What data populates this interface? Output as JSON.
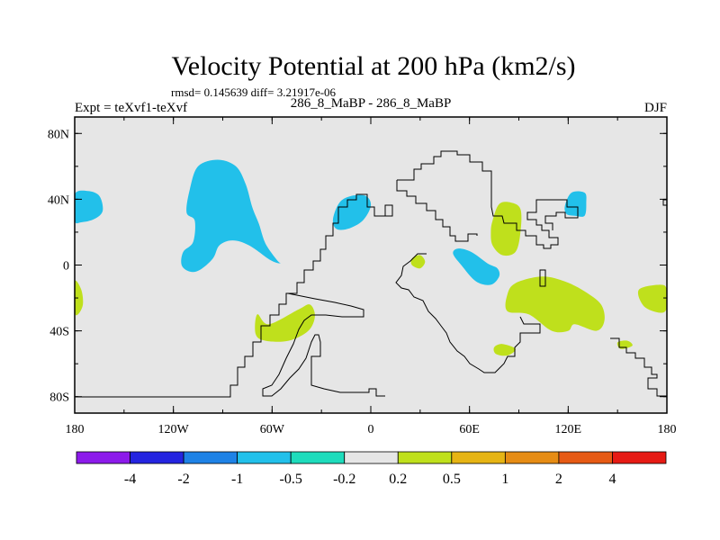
{
  "chart_data": {
    "type": "filled-contour-map",
    "title": "Velocity Potential at 200 hPa (km2/s)",
    "stats": "rmsd= 0.145639 diff= 3.21917e-06",
    "subtitle_left": "Expt = teXvf1-teXvf",
    "subtitle_center": "286_8_MaBP - 286_8_MaBP",
    "subtitle_right": "DJF",
    "x_ticks": [
      {
        "value": -180,
        "label": "180"
      },
      {
        "value": -120,
        "label": "120W"
      },
      {
        "value": -60,
        "label": "60W"
      },
      {
        "value": 0,
        "label": "0"
      },
      {
        "value": 60,
        "label": "60E"
      },
      {
        "value": 120,
        "label": "120E"
      },
      {
        "value": 180,
        "label": "180"
      }
    ],
    "y_ticks": [
      {
        "value": 80,
        "label": "80N"
      },
      {
        "value": 40,
        "label": "40N"
      },
      {
        "value": 0,
        "label": "0"
      },
      {
        "value": -40,
        "label": "40S"
      },
      {
        "value": -80,
        "label": "80S"
      }
    ],
    "xlim": [
      -180,
      180
    ],
    "ylim": [
      -90,
      90
    ],
    "colorbar": {
      "colors": [
        "#8c1aea",
        "#2424e0",
        "#1e82e6",
        "#22c0ea",
        "#1edcbc",
        "#e6e6e6",
        "#bfe01c",
        "#e6b414",
        "#e68c14",
        "#e65a14",
        "#e61a14"
      ],
      "labels": [
        "-4",
        "-2",
        "-1",
        "-0.5",
        "-0.2",
        "0.2",
        "0.5",
        "1",
        "2",
        "4"
      ]
    },
    "background_color": "#e6e6e6",
    "regions": [
      {
        "name": "north-pacific-neg-west",
        "level": "-0.5",
        "polygon": [
          [
            -180,
            43
          ],
          [
            -172,
            45
          ],
          [
            -165,
            42
          ],
          [
            -163,
            33
          ],
          [
            -168,
            28
          ],
          [
            -176,
            26
          ],
          [
            -180,
            27
          ]
        ]
      },
      {
        "name": "north-pacific-neg-center",
        "level": "-0.5",
        "polygon": [
          [
            -105,
            60
          ],
          [
            -93,
            64
          ],
          [
            -82,
            60
          ],
          [
            -76,
            49
          ],
          [
            -72,
            35
          ],
          [
            -68,
            25
          ],
          [
            -64,
            13
          ],
          [
            -57,
            3
          ],
          [
            -55,
            1
          ],
          [
            -61,
            3
          ],
          [
            -74,
            12
          ],
          [
            -84,
            15
          ],
          [
            -92,
            12
          ],
          [
            -96,
            4
          ],
          [
            -104,
            -3
          ],
          [
            -110,
            -4
          ],
          [
            -115,
            0
          ],
          [
            -114,
            8
          ],
          [
            -108,
            14
          ],
          [
            -107,
            27
          ],
          [
            -112,
            32
          ],
          [
            -110,
            46
          ]
        ]
      },
      {
        "name": "atlantic-neg",
        "level": "-0.5",
        "polygon": [
          [
            -23,
            28
          ],
          [
            -19,
            38
          ],
          [
            -12,
            42
          ],
          [
            -3,
            42
          ],
          [
            0,
            36
          ],
          [
            -5,
            27
          ],
          [
            -14,
            22
          ],
          [
            -21,
            22
          ]
        ]
      },
      {
        "name": "africa-neg",
        "level": "-0.5",
        "polygon": [
          [
            50,
            7
          ],
          [
            53,
            10
          ],
          [
            61,
            8
          ],
          [
            71,
            1
          ],
          [
            77,
            -2
          ],
          [
            78,
            -7
          ],
          [
            73,
            -12
          ],
          [
            64,
            -10
          ],
          [
            55,
            0
          ]
        ]
      },
      {
        "name": "east-asia-neg",
        "level": "-0.5",
        "polygon": [
          [
            118,
            36
          ],
          [
            122,
            44
          ],
          [
            130,
            44
          ],
          [
            131,
            38
          ],
          [
            130,
            30
          ],
          [
            124,
            30
          ],
          [
            119,
            31
          ]
        ]
      },
      {
        "name": "west-pacific-pos-edge",
        "level": "0.2",
        "polygon": [
          [
            -180,
            -10
          ],
          [
            -176,
            -15
          ],
          [
            -175,
            -24
          ],
          [
            -178,
            -30
          ],
          [
            -180,
            -28
          ]
        ]
      },
      {
        "name": "south-atlantic-pos",
        "level": "0.2",
        "polygon": [
          [
            -69,
            -30
          ],
          [
            -62,
            -36
          ],
          [
            -44,
            -27
          ],
          [
            -37,
            -24
          ],
          [
            -34,
            -31
          ],
          [
            -38,
            -40
          ],
          [
            -50,
            -46
          ],
          [
            -64,
            -46
          ],
          [
            -70,
            -42
          ]
        ]
      },
      {
        "name": "west-africa-pos",
        "level": "0.2",
        "polygon": [
          [
            25,
            4
          ],
          [
            30,
            6
          ],
          [
            33,
            2
          ],
          [
            30,
            -2
          ],
          [
            25,
            0
          ]
        ]
      },
      {
        "name": "middle-east-pos",
        "level": "0.2",
        "polygon": [
          [
            74,
            27
          ],
          [
            78,
            37
          ],
          [
            85,
            38
          ],
          [
            91,
            34
          ],
          [
            91,
            20
          ],
          [
            88,
            8
          ],
          [
            80,
            6
          ],
          [
            74,
            12
          ],
          [
            73,
            20
          ]
        ]
      },
      {
        "name": "indian-ocean-pos",
        "level": "0.2",
        "polygon": [
          [
            83,
            -18
          ],
          [
            88,
            -11
          ],
          [
            104,
            -7
          ],
          [
            118,
            -10
          ],
          [
            130,
            -16
          ],
          [
            140,
            -24
          ],
          [
            142,
            -34
          ],
          [
            137,
            -40
          ],
          [
            124,
            -36
          ],
          [
            120,
            -40
          ],
          [
            110,
            -40
          ],
          [
            96,
            -30
          ],
          [
            83,
            -28
          ]
        ]
      },
      {
        "name": "madagascar-pos",
        "level": "0.2",
        "polygon": [
          [
            75,
            -50
          ],
          [
            80,
            -48
          ],
          [
            88,
            -51
          ],
          [
            83,
            -55
          ],
          [
            76,
            -54
          ]
        ]
      },
      {
        "name": "south-pacific-pos",
        "level": "0.2",
        "polygon": [
          [
            163,
            -15
          ],
          [
            176,
            -12
          ],
          [
            180,
            -15
          ],
          [
            180,
            -26
          ],
          [
            176,
            -29
          ],
          [
            166,
            -25
          ]
        ]
      },
      {
        "name": "tasman-pos",
        "level": "0.2",
        "polygon": [
          [
            150,
            -47
          ],
          [
            156,
            -46
          ],
          [
            159,
            -49
          ],
          [
            152,
            -51
          ]
        ]
      }
    ]
  }
}
